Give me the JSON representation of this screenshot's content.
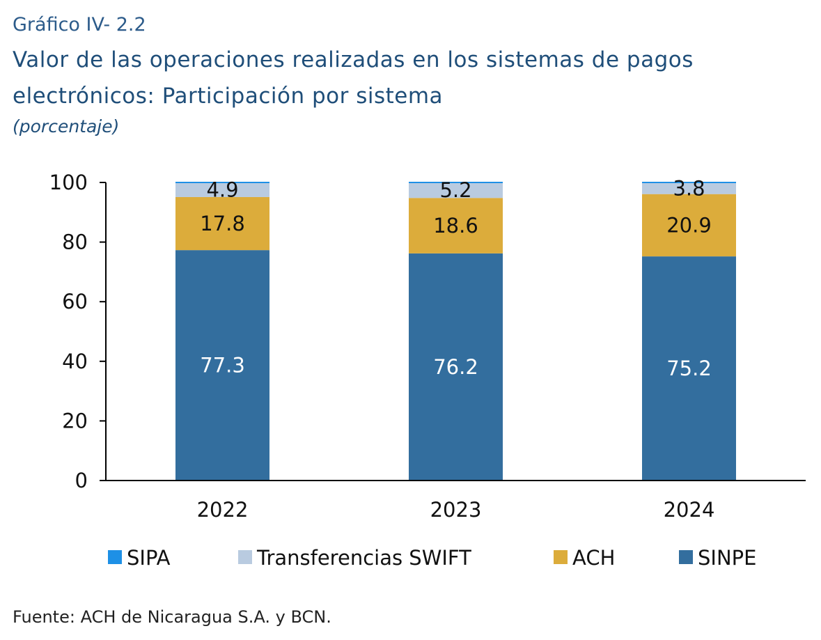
{
  "figure_number": "Gráfico IV- 2.2",
  "title": "Valor de las operaciones realizadas en los sistemas de pagos electrónicos: Participación por sistema",
  "subtitle": "(porcentaje)",
  "source": "Fuente: ACH de Nicaragua S.A. y BCN.",
  "chart_data": {
    "type": "bar",
    "stacked": true,
    "categories": [
      "2022",
      "2023",
      "2024"
    ],
    "series": [
      {
        "name": "SINPE",
        "values": [
          77.3,
          76.2,
          75.2
        ],
        "labels": [
          "77.3",
          "76.2",
          "75.2"
        ],
        "color": "#336e9e",
        "label_color": "#ffffff"
      },
      {
        "name": "ACH",
        "values": [
          17.8,
          18.6,
          20.9
        ],
        "labels": [
          "17.8",
          "18.6",
          "20.9"
        ],
        "color": "#dcac3b",
        "label_color": "#111111"
      },
      {
        "name": "Transferencias SWIFT",
        "values": [
          4.9,
          5.2,
          3.8
        ],
        "labels": [
          "4.9",
          "5.2",
          "3.8"
        ],
        "color": "#b9cbe0",
        "label_color": "#111111"
      },
      {
        "name": "SIPA",
        "values": [
          0.0,
          0.0,
          0.0
        ],
        "labels": [
          "",
          "",
          ""
        ],
        "color": "#1e90e6",
        "label_color": "#111111"
      }
    ],
    "legend_order": [
      "SIPA",
      "Transferencias SWIFT",
      "ACH",
      "SINPE"
    ],
    "ylim": [
      0,
      100
    ],
    "yticks": [
      0,
      20,
      40,
      60,
      80,
      100
    ],
    "ytick_labels": [
      "0",
      "20",
      "40",
      "60",
      "80",
      "100"
    ],
    "xlabel": "",
    "ylabel": "",
    "grid": false,
    "legend_position": "bottom"
  }
}
